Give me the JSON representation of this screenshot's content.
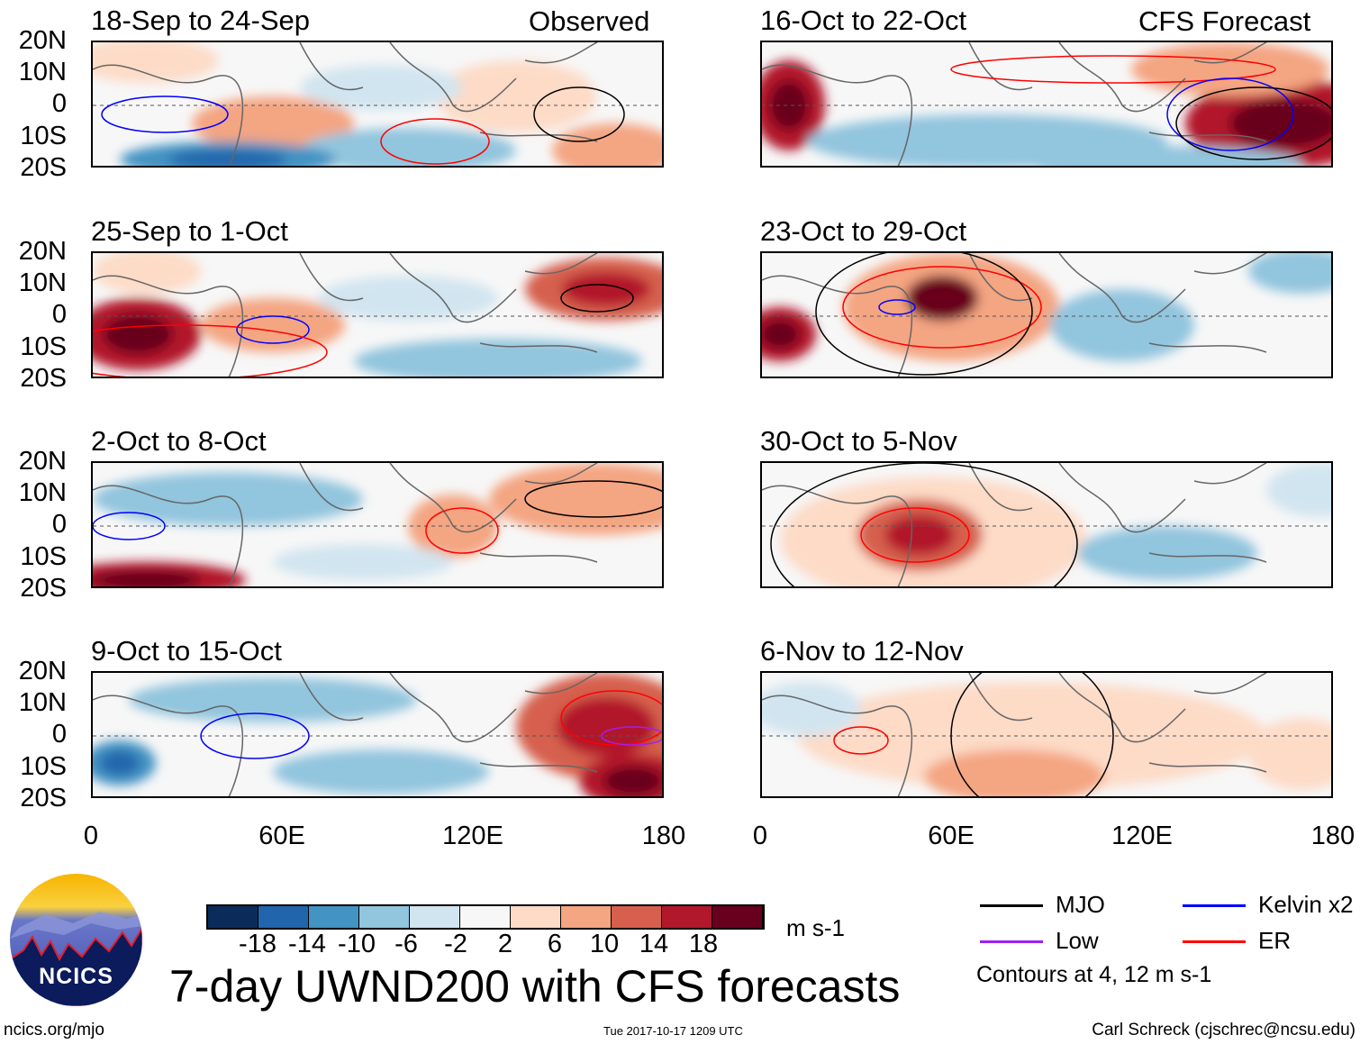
{
  "chart_data": {
    "type": "heatmap",
    "title": "7-day UWND200 with CFS forecasts",
    "variable": "UWND200",
    "units": "m s-1",
    "lat_ticks": [
      "20N",
      "10N",
      "0",
      "10S",
      "20S"
    ],
    "lon_ticks": [
      "0",
      "60E",
      "120E",
      "180"
    ],
    "lat_range": [
      -20,
      20
    ],
    "lon_range": [
      0,
      180
    ],
    "columns": [
      {
        "label": "Observed",
        "panels": [
          "18-Sep to 24-Sep",
          "25-Sep to 1-Oct",
          "2-Oct to 8-Oct",
          "9-Oct to 15-Oct"
        ]
      },
      {
        "label": "CFS Forecast",
        "panels": [
          "16-Oct to 22-Oct",
          "23-Oct to 29-Oct",
          "30-Oct to 5-Nov",
          "6-Nov to 12-Nov"
        ]
      }
    ],
    "colorbar": {
      "levels": [
        "-18",
        "-14",
        "-10",
        "-6",
        "-2",
        "2",
        "6",
        "10",
        "14",
        "18"
      ],
      "colors": [
        "#0b2c5a",
        "#2166ac",
        "#4393c3",
        "#92c5de",
        "#d1e5f0",
        "#f7f7f7",
        "#fddbc7",
        "#f4a582",
        "#d6604d",
        "#b2182b",
        "#67001f"
      ]
    },
    "legend": [
      {
        "label": "MJO",
        "color": "#000000"
      },
      {
        "label": "Kelvin x2",
        "color": "#0000ff"
      },
      {
        "label": "Low",
        "color": "#a020f0"
      },
      {
        "label": "ER",
        "color": "#ff0000"
      }
    ],
    "contour_note": "Contours at 4, 12 m s-1"
  },
  "footer": {
    "left": "ncics.org/mjo",
    "center": "Tue 2017-10-17 1209 UTC",
    "right": "Carl Schreck (cjschrec@ncsu.edu)",
    "logo_text": "NCICS"
  }
}
